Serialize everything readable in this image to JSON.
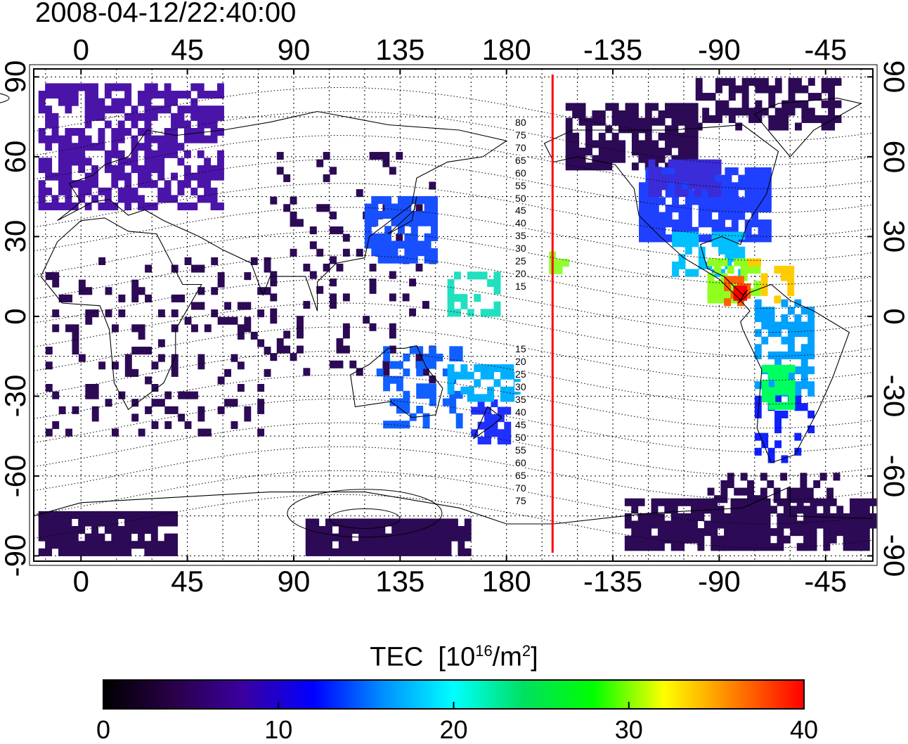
{
  "timestamp": "2008-04-12/22:40:00",
  "axes": {
    "lon_ticks": [
      "0",
      "45",
      "90",
      "135",
      "180",
      "-135",
      "-90",
      "-45"
    ],
    "lat_ticks": [
      "90",
      "60",
      "30",
      "0",
      "-30",
      "-60",
      "-90"
    ]
  },
  "map": {
    "lon_range": [
      -20,
      335
    ],
    "lat_range": [
      -92,
      93
    ],
    "meridian_marker_lon": 199.5,
    "marker_color": "#ff0000",
    "contour_labels": [
      "80",
      "75",
      "70",
      "65",
      "60",
      "55",
      "50",
      "45",
      "40",
      "35",
      "30",
      "25",
      "20",
      "15",
      "15",
      "20",
      "25",
      "30",
      "35",
      "40",
      "45",
      "50",
      "55",
      "60",
      "65",
      "70",
      "75"
    ]
  },
  "colorbar": {
    "title_main": "TEC",
    "title_unit_prefix": "[10",
    "title_unit_exp1": "16",
    "title_unit_mid": "/m",
    "title_unit_exp2": "2",
    "title_unit_suffix": "]",
    "min": 0,
    "max": 40,
    "tick_labels": [
      "0",
      "10",
      "20",
      "30",
      "40"
    ],
    "colors": [
      "#000000",
      "#2a0048",
      "#3a00a0",
      "#0000ff",
      "#0090ff",
      "#00ffff",
      "#00e060",
      "#00ff00",
      "#ffff00",
      "#ff8000",
      "#ff0000"
    ]
  }
}
